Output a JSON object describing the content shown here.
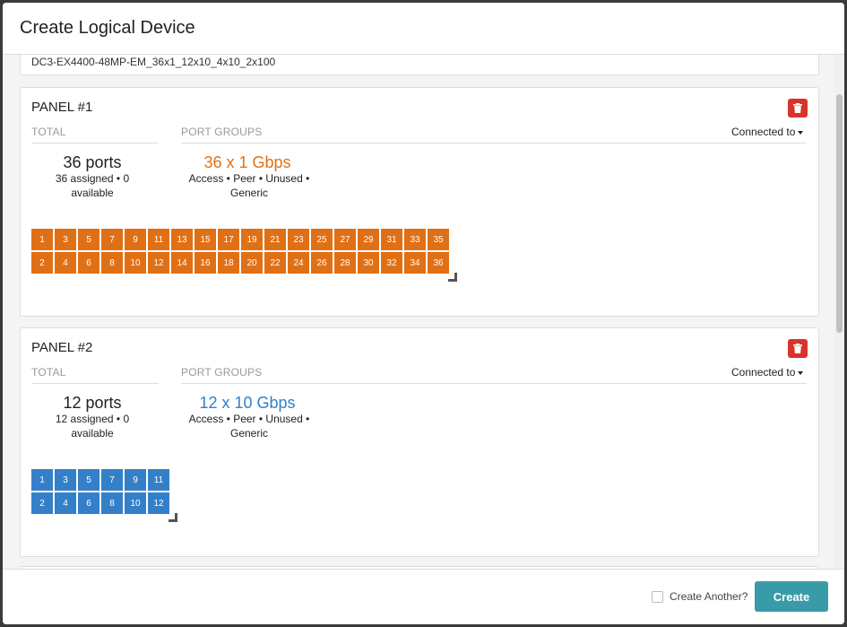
{
  "modal": {
    "title": "Create Logical Device"
  },
  "device_name": "DC3-EX4400-48MP-EM_36x1_12x10_4x10_2x100",
  "panels": [
    {
      "title": "PANEL #1",
      "total_header": "TOTAL",
      "port_groups_header": "PORT GROUPS",
      "connected_to": "Connected to",
      "total_ports": "36 ports",
      "total_detail": "36 assigned • 0 available",
      "port_group_speed": "36 x 1 Gbps",
      "port_group_roles": "Access • Peer • Unused • Generic",
      "color": "#e07016",
      "ports_top": [
        "1",
        "3",
        "5",
        "7",
        "9",
        "11",
        "13",
        "15",
        "17",
        "19",
        "21",
        "23",
        "25",
        "27",
        "29",
        "31",
        "33",
        "35"
      ],
      "ports_bottom": [
        "2",
        "4",
        "6",
        "8",
        "10",
        "12",
        "14",
        "16",
        "18",
        "20",
        "22",
        "24",
        "26",
        "28",
        "30",
        "32",
        "34",
        "36"
      ]
    },
    {
      "title": "PANEL #2",
      "total_header": "TOTAL",
      "port_groups_header": "PORT GROUPS",
      "connected_to": "Connected to",
      "total_ports": "12 ports",
      "total_detail": "12 assigned • 0 available",
      "port_group_speed": "12 x 10 Gbps",
      "port_group_roles": "Access • Peer • Unused • Generic",
      "color": "#3480c8",
      "ports_top": [
        "1",
        "3",
        "5",
        "7",
        "9",
        "11"
      ],
      "ports_bottom": [
        "2",
        "4",
        "6",
        "8",
        "10",
        "12"
      ]
    }
  ],
  "footer": {
    "create_another_label": "Create Another?",
    "create_another_checked": false,
    "create_button": "Create"
  },
  "icons": {
    "delete": "trash-icon",
    "dropdown": "caret-down-icon"
  },
  "colors": {
    "danger": "#d9332a",
    "primary": "#3a9ba8"
  }
}
